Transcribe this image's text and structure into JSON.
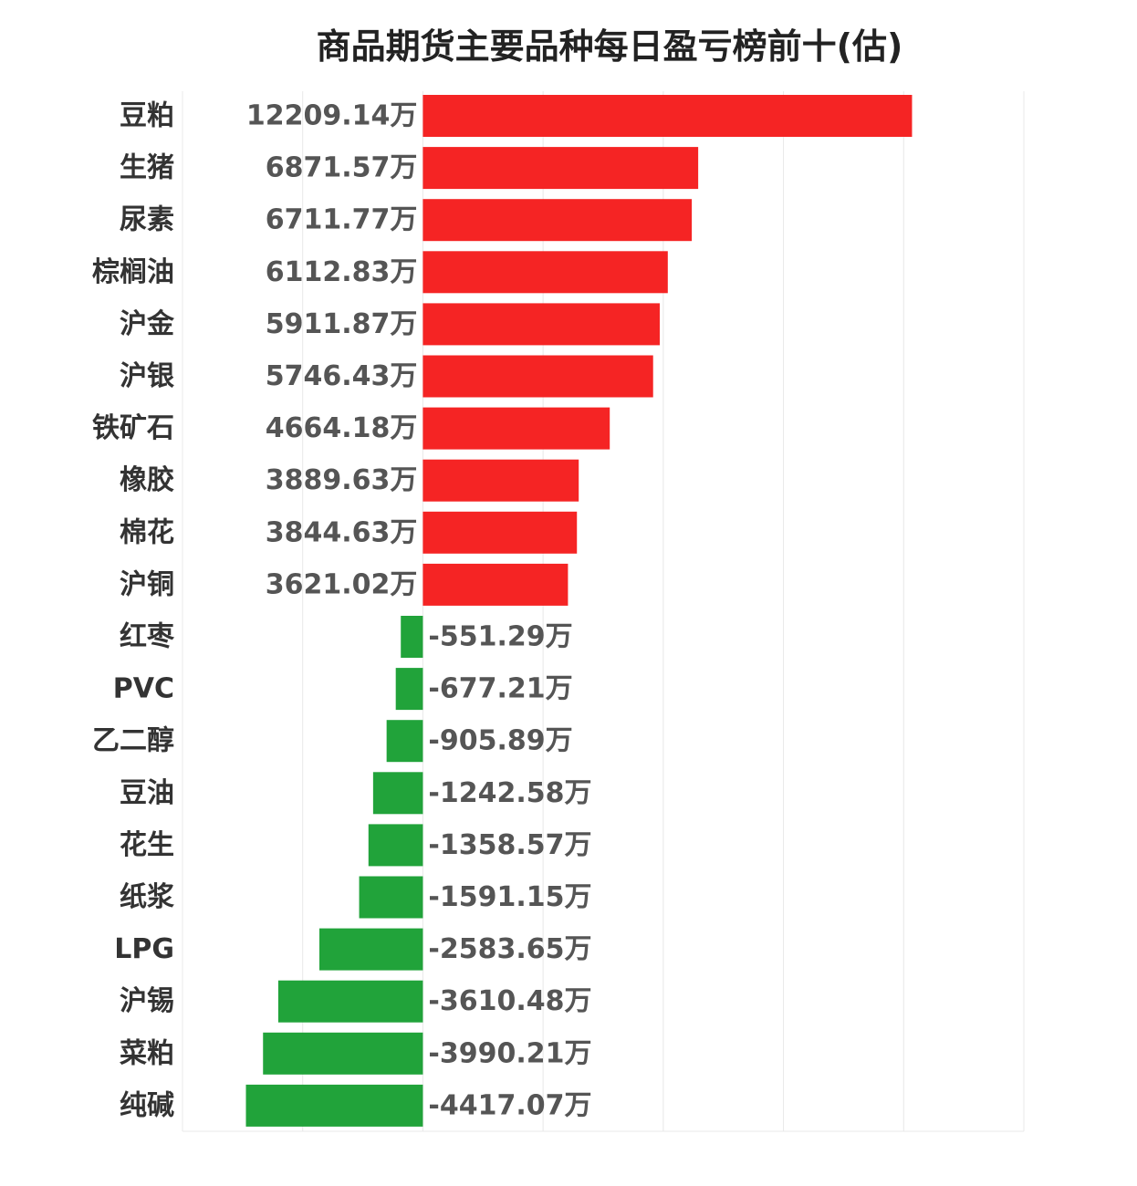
{
  "chart_data": {
    "type": "bar",
    "orientation": "horizontal",
    "title": "商品期货主要品种每日盈亏榜前十(估)",
    "unit": "万",
    "categories": [
      "豆粕",
      "生猪",
      "尿素",
      "棕榈油",
      "沪金",
      "沪银",
      "铁矿石",
      "橡胶",
      "棉花",
      "沪铜",
      "红枣",
      "PVC",
      "乙二醇",
      "豆油",
      "花生",
      "纸浆",
      "LPG",
      "沪锡",
      "菜粕",
      "纯碱"
    ],
    "values": [
      12209.14,
      6871.57,
      6711.77,
      6112.83,
      5911.87,
      5746.43,
      4664.18,
      3889.63,
      3844.63,
      3621.02,
      -551.29,
      -677.21,
      -905.89,
      -1242.58,
      -1358.57,
      -1591.15,
      -2583.65,
      -3610.48,
      -3990.21,
      -4417.07
    ],
    "value_labels": [
      "12209.14万",
      "6871.57万",
      "6711.77万",
      "6112.83万",
      "5911.87万",
      "5746.43万",
      "4664.18万",
      "3889.63万",
      "3844.63万",
      "3621.02万",
      "-551.29万",
      "-677.21万",
      "-905.89万",
      "-1242.58万",
      "-1358.57万",
      "-1591.15万",
      "-2583.65万",
      "-3610.48万",
      "-3990.21万",
      "-4417.07万"
    ],
    "xlim": [
      -6000,
      15000
    ],
    "grid": true,
    "colors": {
      "positive": "#f52424",
      "negative": "#21a33a",
      "grid": "#e8e8e8"
    }
  }
}
